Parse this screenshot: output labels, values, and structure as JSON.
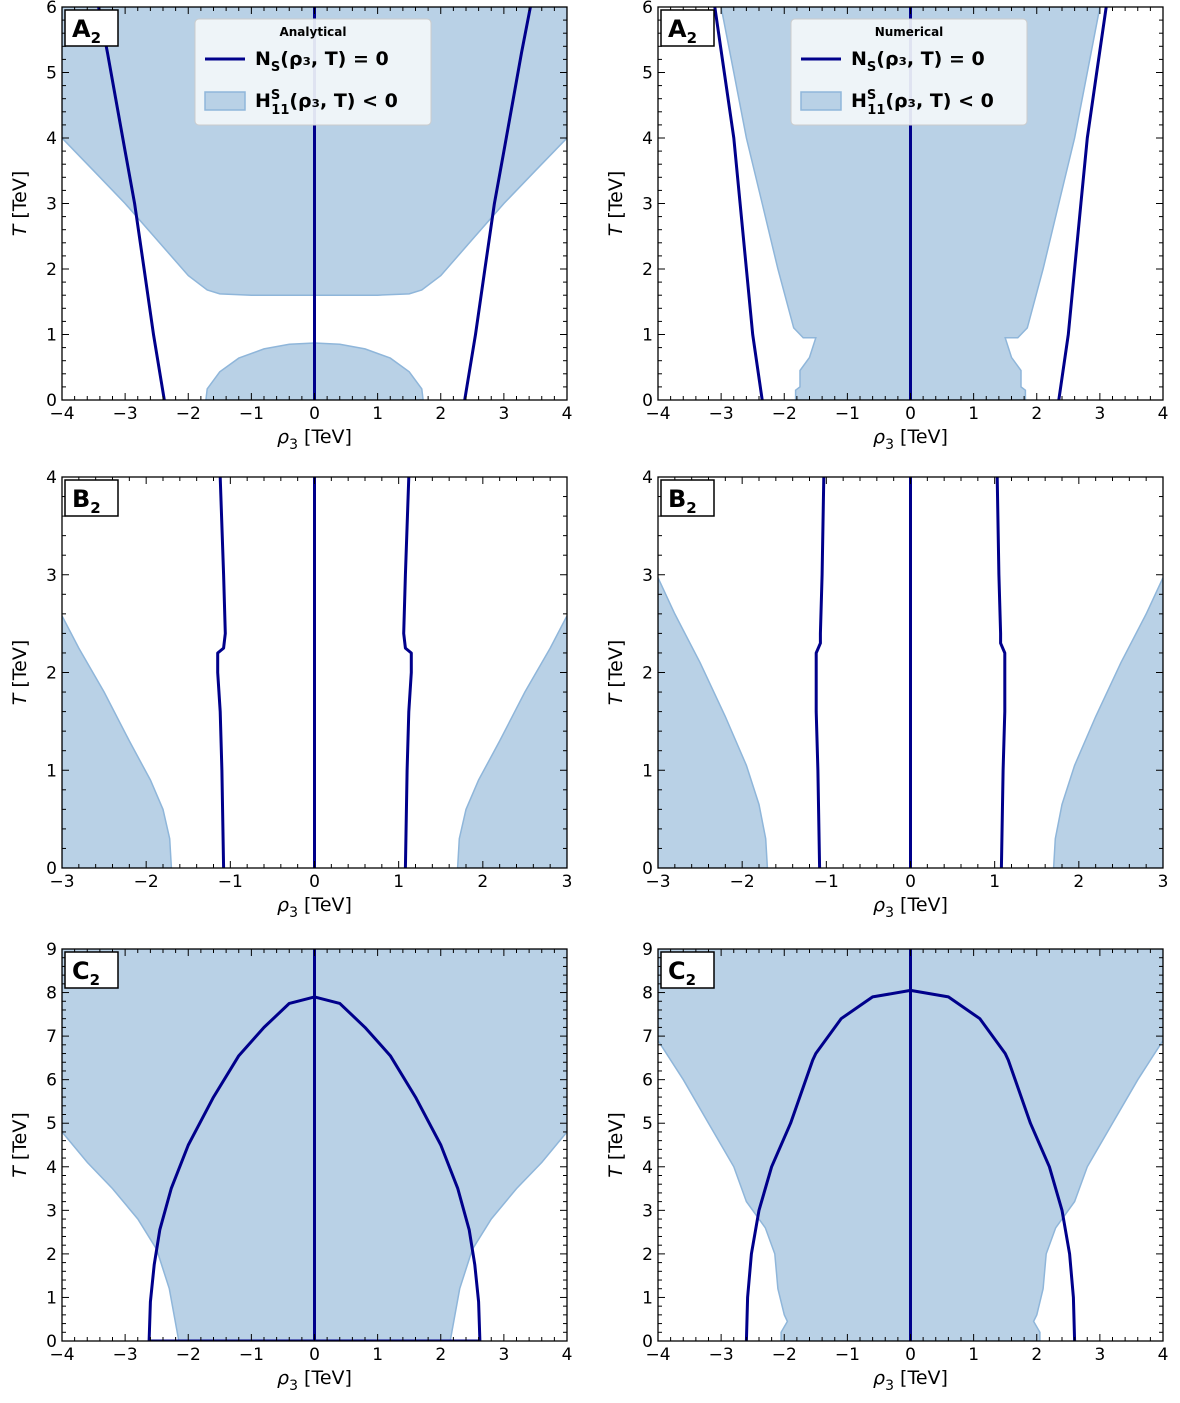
{
  "figure": {
    "colors": {
      "line": "#00008b",
      "fill": "#b9d1e6",
      "fill_edge": "#8fb6da"
    }
  },
  "chart_data": [
    {
      "type": "line",
      "panel": "A",
      "panel_sub": "2",
      "legend_title": "Analytical",
      "legend_placement": "top-center",
      "legend": [
        {
          "kind": "line",
          "main": "N",
          "sub": "S",
          "sup": "",
          "rest": "(ρ₃, T) = 0"
        },
        {
          "kind": "fill",
          "main": "H",
          "sub": "11",
          "sup": "S",
          "rest": "(ρ₃, T) < 0"
        }
      ],
      "xlabel": {
        "main": "ρ",
        "sub": "3",
        "rest": " [TeV]"
      },
      "ylabel": {
        "main": "T",
        "rest": " [TeV]"
      },
      "xlim": [
        -4,
        4
      ],
      "ylim": [
        0,
        6
      ],
      "xticks": [
        -4,
        -3,
        -2,
        -1,
        0,
        1,
        2,
        3,
        4
      ],
      "yticks": [
        0,
        1,
        2,
        3,
        4,
        5,
        6
      ],
      "lines": [
        {
          "name": "N_S=0 left",
          "x": [
            -2.38,
            -2.55,
            -2.7,
            -2.85,
            -3.0,
            -3.15,
            -3.28,
            -3.42
          ],
          "y": [
            0,
            1.0,
            2.0,
            3.0,
            3.8,
            4.6,
            5.3,
            6.0
          ]
        },
        {
          "name": "N_S=0 center",
          "x": [
            0,
            0
          ],
          "y": [
            0,
            6
          ]
        },
        {
          "name": "N_S=0 right",
          "x": [
            2.38,
            2.55,
            2.7,
            2.85,
            3.0,
            3.15,
            3.28,
            3.42
          ],
          "y": [
            0,
            1.0,
            2.0,
            3.0,
            3.8,
            4.6,
            5.3,
            6.0
          ]
        }
      ],
      "regions": [
        {
          "name": "H11S<0 upper",
          "x": [
            -4,
            -3.5,
            -3.0,
            -2.5,
            -2.0,
            -1.7,
            -1.5,
            -1.0,
            0,
            1.0,
            1.5,
            1.7,
            2.0,
            2.5,
            3.0,
            3.5,
            4,
            4,
            -4
          ],
          "y": [
            4.0,
            3.5,
            3.0,
            2.45,
            1.9,
            1.68,
            1.62,
            1.6,
            1.6,
            1.6,
            1.62,
            1.68,
            1.9,
            2.45,
            3.0,
            3.5,
            4.0,
            6,
            6
          ]
        },
        {
          "name": "H11S<0 lower",
          "x": [
            -1.72,
            -1.7,
            -1.5,
            -1.2,
            -0.8,
            -0.4,
            0,
            0.4,
            0.8,
            1.2,
            1.5,
            1.7,
            1.72
          ],
          "y": [
            0,
            0.17,
            0.43,
            0.64,
            0.78,
            0.85,
            0.87,
            0.85,
            0.78,
            0.64,
            0.43,
            0.17,
            0
          ]
        }
      ]
    },
    {
      "type": "line",
      "panel": "A",
      "panel_sub": "2",
      "legend_title": "Numerical",
      "legend_placement": "top-center",
      "legend": [
        {
          "kind": "line",
          "main": "N",
          "sub": "S",
          "sup": "",
          "rest": "(ρ₃, T) = 0"
        },
        {
          "kind": "fill",
          "main": "H",
          "sub": "11",
          "sup": "S",
          "rest": "(ρ₃, T) < 0"
        }
      ],
      "xlabel": {
        "main": "ρ",
        "sub": "3",
        "rest": " [TeV]"
      },
      "ylabel": {
        "main": "T",
        "rest": " [TeV]"
      },
      "xlim": [
        -4,
        4
      ],
      "ylim": [
        0,
        6
      ],
      "xticks": [
        -4,
        -3,
        -2,
        -1,
        0,
        1,
        2,
        3,
        4
      ],
      "yticks": [
        0,
        1,
        2,
        3,
        4,
        5,
        6
      ],
      "lines": [
        {
          "name": "N_S=0 left",
          "x": [
            -2.35,
            -2.5,
            -2.6,
            -2.7,
            -2.8,
            -2.95,
            -3.1
          ],
          "y": [
            0,
            1.0,
            2.0,
            3.0,
            4.0,
            5.0,
            6.0
          ]
        },
        {
          "name": "N_S=0 center",
          "x": [
            0,
            0
          ],
          "y": [
            0,
            6
          ]
        },
        {
          "name": "N_S=0 right",
          "x": [
            2.35,
            2.5,
            2.6,
            2.7,
            2.8,
            2.95,
            3.1
          ],
          "y": [
            0,
            1.0,
            2.0,
            3.0,
            4.0,
            5.0,
            6.0
          ]
        }
      ],
      "regions": [
        {
          "name": "H11S<0",
          "x": [
            -3.0,
            -2.8,
            -2.6,
            -2.35,
            -2.1,
            -1.85,
            -1.7,
            -1.5,
            -1.6,
            -1.75,
            -1.75,
            -1.82,
            -1.82,
            1.82,
            1.82,
            1.75,
            1.75,
            1.6,
            1.5,
            1.7,
            1.85,
            2.1,
            2.35,
            2.6,
            2.8,
            3.0
          ],
          "y": [
            6.0,
            5.0,
            4.0,
            3.0,
            2.0,
            1.1,
            0.95,
            0.95,
            0.65,
            0.45,
            0.2,
            0.15,
            0,
            0,
            0.15,
            0.2,
            0.45,
            0.65,
            0.95,
            0.95,
            1.1,
            2.0,
            3.0,
            4.0,
            5.0,
            6.0
          ]
        }
      ]
    },
    {
      "type": "line",
      "panel": "B",
      "panel_sub": "2",
      "xlabel": {
        "main": "ρ",
        "sub": "3",
        "rest": " [TeV]"
      },
      "ylabel": {
        "main": "T",
        "rest": " [TeV]"
      },
      "xlim": [
        -3,
        3
      ],
      "ylim": [
        0,
        4
      ],
      "xticks": [
        -3,
        -2,
        -1,
        0,
        1,
        2,
        3
      ],
      "yticks": [
        0,
        1,
        2,
        3,
        4
      ],
      "lines": [
        {
          "name": "N_S=0 left",
          "x": [
            -1.08,
            -1.1,
            -1.12,
            -1.15,
            -1.15,
            -1.08,
            -1.06,
            -1.08,
            -1.12
          ],
          "y": [
            0,
            1.0,
            1.6,
            2.0,
            2.2,
            2.25,
            2.4,
            3.0,
            4.0
          ]
        },
        {
          "name": "N_S=0 center",
          "x": [
            0,
            0
          ],
          "y": [
            0,
            4
          ]
        },
        {
          "name": "N_S=0 right",
          "x": [
            1.08,
            1.1,
            1.12,
            1.15,
            1.15,
            1.08,
            1.06,
            1.08,
            1.12
          ],
          "y": [
            0,
            1.0,
            1.6,
            2.0,
            2.2,
            2.25,
            2.4,
            3.0,
            4.0
          ]
        }
      ],
      "regions": [
        {
          "name": "H11S<0 left",
          "x": [
            -3,
            -2.8,
            -2.5,
            -2.2,
            -1.95,
            -1.8,
            -1.72,
            -1.7,
            -3
          ],
          "y": [
            2.58,
            2.25,
            1.8,
            1.3,
            0.9,
            0.6,
            0.3,
            0,
            0
          ]
        },
        {
          "name": "H11S<0 right",
          "x": [
            3,
            2.8,
            2.5,
            2.2,
            1.95,
            1.8,
            1.72,
            1.7,
            3
          ],
          "y": [
            2.58,
            2.25,
            1.8,
            1.3,
            0.9,
            0.6,
            0.3,
            0,
            0
          ]
        }
      ]
    },
    {
      "type": "line",
      "panel": "B",
      "panel_sub": "2",
      "xlabel": {
        "main": "ρ",
        "sub": "3",
        "rest": " [TeV]"
      },
      "ylabel": {
        "main": "T",
        "rest": " [TeV]"
      },
      "xlim": [
        -3,
        3
      ],
      "ylim": [
        0,
        4
      ],
      "xticks": [
        -3,
        -2,
        -1,
        0,
        1,
        2,
        3
      ],
      "yticks": [
        0,
        1,
        2,
        3,
        4
      ],
      "lines": [
        {
          "name": "N_S=0 left",
          "x": [
            -1.08,
            -1.1,
            -1.12,
            -1.12,
            -1.07,
            -1.07,
            -1.05,
            -1.03
          ],
          "y": [
            0,
            1.0,
            1.6,
            2.2,
            2.3,
            2.4,
            3.0,
            4.0
          ]
        },
        {
          "name": "N_S=0 center",
          "x": [
            0,
            0
          ],
          "y": [
            0,
            4
          ]
        },
        {
          "name": "N_S=0 right",
          "x": [
            1.08,
            1.1,
            1.12,
            1.12,
            1.07,
            1.07,
            1.05,
            1.03
          ],
          "y": [
            0,
            1.0,
            1.6,
            2.2,
            2.3,
            2.4,
            3.0,
            4.0
          ]
        }
      ],
      "regions": [
        {
          "name": "H11S<0 left",
          "x": [
            -3,
            -2.8,
            -2.5,
            -2.2,
            -1.95,
            -1.8,
            -1.72,
            -1.7,
            -3
          ],
          "y": [
            2.97,
            2.6,
            2.1,
            1.55,
            1.05,
            0.65,
            0.3,
            0,
            0
          ]
        },
        {
          "name": "H11S<0 right",
          "x": [
            3,
            2.8,
            2.5,
            2.2,
            1.95,
            1.8,
            1.72,
            1.7,
            3
          ],
          "y": [
            2.97,
            2.6,
            2.1,
            1.55,
            1.05,
            0.65,
            0.3,
            0,
            0
          ]
        }
      ]
    },
    {
      "type": "line",
      "panel": "C",
      "panel_sub": "2",
      "xlabel": {
        "main": "ρ",
        "sub": "3",
        "rest": " [TeV]"
      },
      "ylabel": {
        "main": "T",
        "rest": " [TeV]"
      },
      "xlim": [
        -4,
        4
      ],
      "ylim": [
        0,
        9
      ],
      "xticks": [
        -4,
        -3,
        -2,
        -1,
        0,
        1,
        2,
        3,
        4
      ],
      "yticks": [
        0,
        1,
        2,
        3,
        4,
        5,
        6,
        7,
        8,
        9
      ],
      "lines": [
        {
          "name": "N_S=0 ellipse",
          "x": [
            -2.62,
            -2.6,
            -2.54,
            -2.45,
            -2.27,
            -2.0,
            -1.6,
            -1.2,
            -0.8,
            -0.4,
            0,
            0.4,
            0.8,
            1.2,
            1.6,
            2.0,
            2.27,
            2.45,
            2.54,
            2.6,
            2.62
          ],
          "y": [
            0,
            0.9,
            1.75,
            2.55,
            3.5,
            4.5,
            5.6,
            6.55,
            7.2,
            7.75,
            7.9,
            7.75,
            7.2,
            6.55,
            5.6,
            4.5,
            3.5,
            2.55,
            1.75,
            0.9,
            0
          ]
        },
        {
          "name": "N_S=0 center",
          "x": [
            0,
            0
          ],
          "y": [
            0,
            9
          ]
        },
        {
          "name": "N_S=0 baseline",
          "x": [
            -2.62,
            2.62
          ],
          "y": [
            0,
            0
          ]
        }
      ],
      "regions": [
        {
          "name": "H11S<0",
          "x": [
            -4,
            -3.6,
            -3.2,
            -2.8,
            -2.5,
            -2.3,
            -2.15,
            2.15,
            2.3,
            2.5,
            2.8,
            3.2,
            3.6,
            4,
            4,
            -4
          ],
          "y": [
            4.8,
            4.1,
            3.5,
            2.8,
            2.1,
            1.2,
            0,
            0,
            1.2,
            2.1,
            2.8,
            3.5,
            4.1,
            4.8,
            9,
            9
          ]
        }
      ]
    },
    {
      "type": "line",
      "panel": "C",
      "panel_sub": "2",
      "xlabel": {
        "main": "ρ",
        "sub": "3",
        "rest": " [TeV]"
      },
      "ylabel": {
        "main": "T",
        "rest": " [TeV]"
      },
      "xlim": [
        -4,
        4
      ],
      "ylim": [
        0,
        9
      ],
      "xticks": [
        -4,
        -3,
        -2,
        -1,
        0,
        1,
        2,
        3,
        4
      ],
      "yticks": [
        0,
        1,
        2,
        3,
        4,
        5,
        6,
        7,
        8,
        9
      ],
      "lines": [
        {
          "name": "N_S=0 ellipse",
          "x": [
            -2.6,
            -2.58,
            -2.52,
            -2.4,
            -2.2,
            -1.9,
            -1.55,
            -1.5,
            -1.1,
            -0.6,
            0,
            0.6,
            1.1,
            1.5,
            1.55,
            1.9,
            2.2,
            2.4,
            2.52,
            2.58,
            2.6
          ],
          "y": [
            0,
            1.0,
            2.0,
            3.0,
            4.0,
            5.0,
            6.45,
            6.6,
            7.4,
            7.9,
            8.05,
            7.9,
            7.4,
            6.6,
            6.45,
            5.0,
            4.0,
            3.0,
            2.0,
            1.0,
            0
          ]
        },
        {
          "name": "N_S=0 center",
          "x": [
            0,
            0
          ],
          "y": [
            0,
            9
          ]
        }
      ],
      "regions": [
        {
          "name": "H11S<0",
          "x": [
            -4,
            -3.6,
            -3.2,
            -2.8,
            -2.6,
            -2.3,
            -2.15,
            -2.1,
            -2.0,
            -1.95,
            -2.05,
            -2.05,
            2.05,
            2.05,
            1.95,
            2.0,
            2.1,
            2.15,
            2.3,
            2.6,
            2.8,
            3.2,
            3.6,
            4,
            4,
            -4
          ],
          "y": [
            6.9,
            6.0,
            5.0,
            4.0,
            3.2,
            2.6,
            2.0,
            1.2,
            0.6,
            0.45,
            0.2,
            0,
            0,
            0.2,
            0.45,
            0.6,
            1.2,
            2.0,
            2.6,
            3.2,
            4.0,
            5.0,
            6.0,
            6.9,
            9,
            9
          ]
        }
      ]
    }
  ]
}
